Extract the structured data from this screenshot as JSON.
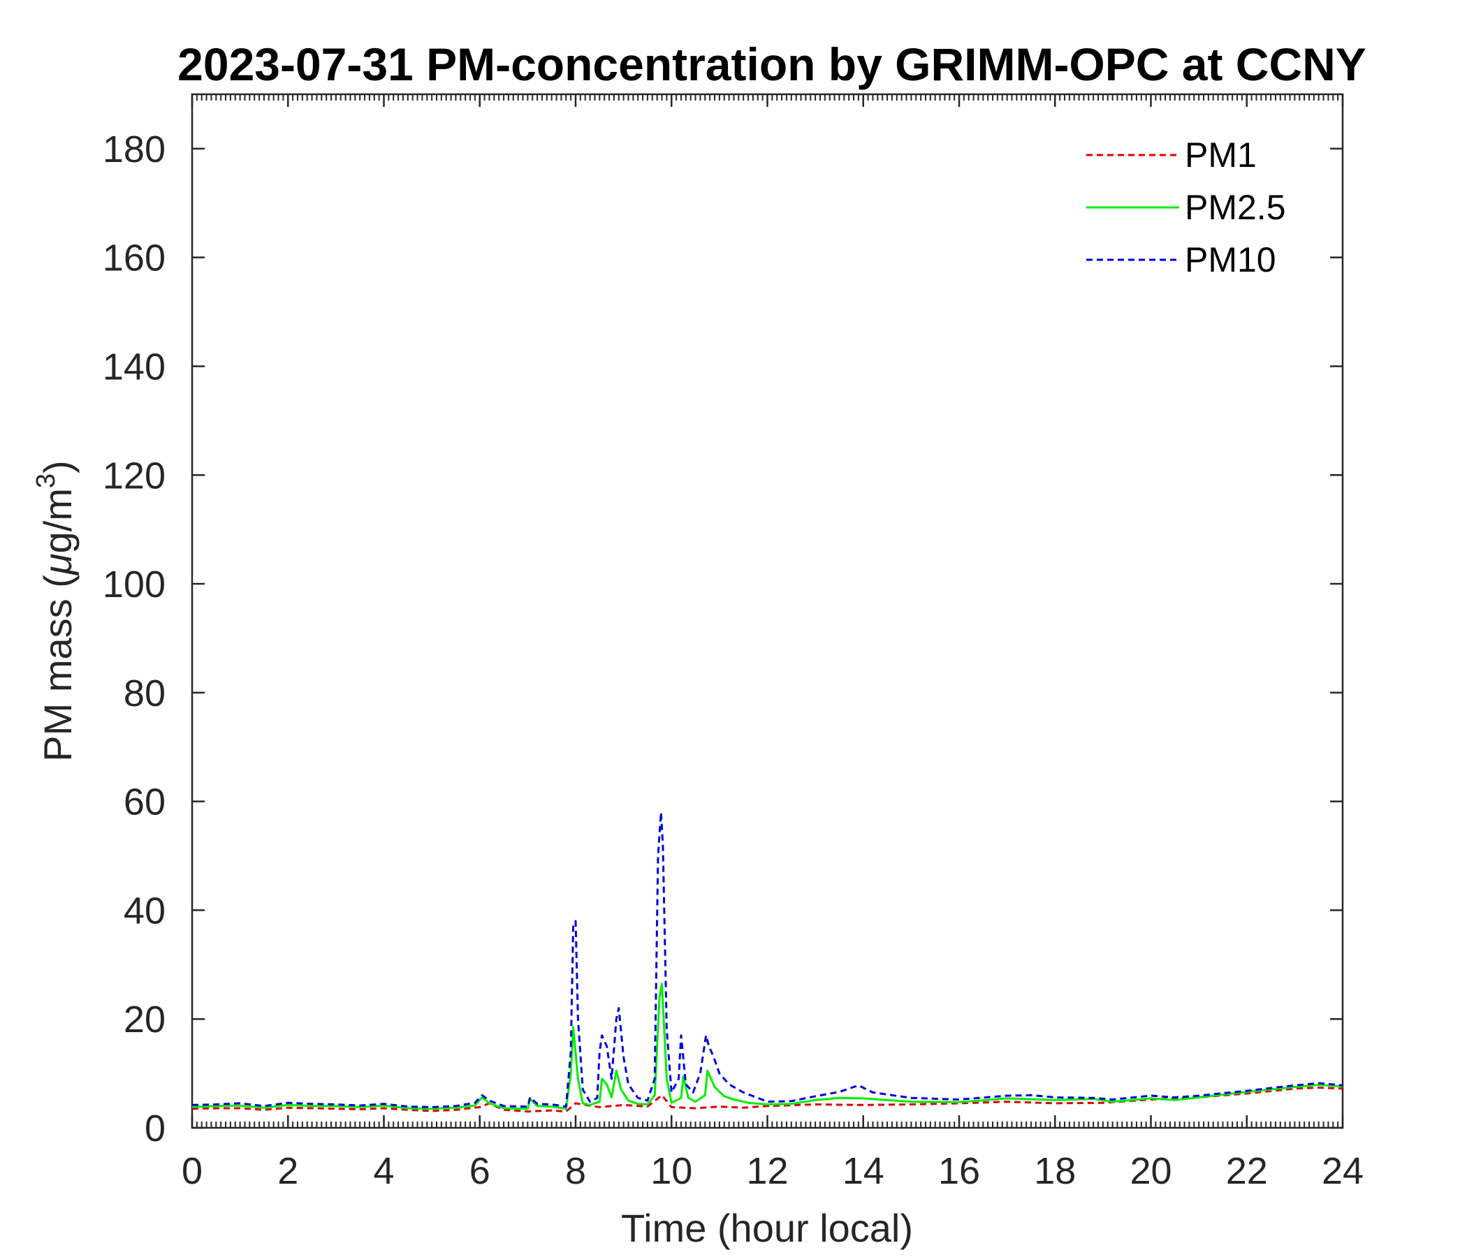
{
  "chart_data": {
    "type": "line",
    "title": "2023-07-31 PM-concentration by GRIMM-OPC at CCNY",
    "xlabel": "Time (hour local)",
    "ylabel_main": "PM mass (",
    "ylabel_mu": "μ",
    "ylabel_unit": "g/m",
    "ylabel_sup": "3",
    "ylabel_close": ")",
    "xlim": [
      0,
      24
    ],
    "ylim": [
      0,
      190
    ],
    "xticks": [
      0,
      2,
      4,
      6,
      8,
      10,
      12,
      14,
      16,
      18,
      20,
      22,
      24
    ],
    "yticks": [
      0,
      20,
      40,
      60,
      80,
      100,
      120,
      140,
      160,
      180
    ],
    "grid": false,
    "legend_position": "top-right",
    "series": [
      {
        "name": "PM1",
        "color": "#e00000",
        "dash": "dashed",
        "x": [
          0,
          0.5,
          1,
          1.5,
          2,
          2.5,
          3,
          3.5,
          4,
          4.5,
          5,
          5.5,
          6,
          6.2,
          6.5,
          7,
          7.5,
          7.8,
          8,
          8.5,
          9,
          9.5,
          9.8,
          10,
          10.5,
          11,
          11.5,
          12,
          13,
          14,
          15,
          16,
          17,
          18,
          19,
          20,
          21,
          22,
          23,
          23.5,
          24
        ],
        "values": [
          3.5,
          3.6,
          3.6,
          3.3,
          3.7,
          3.6,
          3.5,
          3.4,
          3.6,
          3.3,
          3.1,
          3.3,
          3.8,
          4.5,
          3.3,
          3.0,
          3.2,
          3.0,
          4.5,
          3.8,
          4.2,
          3.9,
          6.0,
          3.8,
          3.6,
          3.9,
          3.7,
          4.0,
          4.3,
          4.2,
          4.3,
          4.5,
          4.8,
          4.5,
          4.6,
          5.2,
          5.6,
          6.3,
          7.2,
          7.4,
          7.2
        ]
      },
      {
        "name": "PM2.5",
        "color": "#00ee00",
        "dash": "solid",
        "x": [
          0,
          0.5,
          1,
          1.5,
          2,
          2.5,
          3,
          3.5,
          4,
          4.5,
          5,
          5.5,
          5.9,
          6.05,
          6.2,
          6.5,
          7.0,
          7.05,
          7.2,
          7.5,
          7.8,
          7.9,
          7.95,
          8.05,
          8.15,
          8.3,
          8.5,
          8.55,
          8.65,
          8.75,
          8.85,
          8.95,
          9.1,
          9.3,
          9.5,
          9.65,
          9.75,
          9.8,
          9.9,
          10.0,
          10.2,
          10.25,
          10.35,
          10.5,
          10.7,
          10.75,
          10.9,
          11.1,
          11.3,
          11.6,
          12,
          12.5,
          13,
          13.5,
          14,
          14.5,
          15,
          16,
          17,
          18,
          18.8,
          19.2,
          20,
          20.5,
          21,
          22,
          23,
          23.5,
          24
        ],
        "values": [
          3.8,
          4.0,
          4.1,
          3.7,
          4.2,
          4.0,
          4.0,
          3.8,
          4.1,
          3.6,
          3.5,
          3.7,
          4.1,
          5.6,
          4.5,
          3.6,
          3.5,
          5.3,
          4.0,
          3.9,
          3.5,
          10.0,
          18.5,
          9.0,
          4.5,
          4.2,
          4.8,
          9.0,
          8.0,
          5.6,
          10.5,
          7.0,
          5.0,
          4.4,
          4.3,
          6.0,
          24.0,
          26.5,
          9.0,
          4.6,
          5.5,
          9.5,
          5.5,
          4.8,
          6.0,
          10.5,
          7.5,
          5.8,
          5.2,
          4.6,
          4.3,
          4.4,
          5.1,
          5.5,
          5.4,
          5.1,
          4.8,
          4.7,
          5.4,
          5.1,
          5.3,
          4.8,
          5.4,
          5.1,
          5.6,
          6.6,
          7.5,
          7.9,
          7.6
        ]
      },
      {
        "name": "PM10",
        "color": "#0000dd",
        "dash": "dashed",
        "x": [
          0,
          0.5,
          1,
          1.5,
          2,
          2.5,
          3,
          3.5,
          4,
          4.5,
          5,
          5.5,
          5.9,
          6.05,
          6.2,
          6.5,
          7.0,
          7.05,
          7.2,
          7.5,
          7.8,
          7.9,
          7.95,
          8.0,
          8.05,
          8.15,
          8.3,
          8.45,
          8.5,
          8.55,
          8.65,
          8.75,
          8.85,
          8.9,
          9.0,
          9.1,
          9.3,
          9.5,
          9.65,
          9.72,
          9.78,
          9.82,
          9.9,
          10.0,
          10.15,
          10.2,
          10.3,
          10.45,
          10.6,
          10.72,
          10.78,
          10.88,
          11.0,
          11.2,
          11.5,
          11.8,
          12,
          12.5,
          13,
          13.5,
          13.9,
          14.2,
          14.6,
          15,
          16,
          17,
          17.5,
          18,
          18.8,
          19.2,
          20,
          20.5,
          21,
          22,
          23,
          23.5,
          24
        ],
        "values": [
          4.2,
          4.3,
          4.5,
          4.0,
          4.6,
          4.4,
          4.3,
          4.1,
          4.4,
          3.9,
          3.8,
          4.0,
          4.6,
          6.0,
          5.0,
          4.0,
          3.9,
          5.6,
          4.4,
          4.3,
          3.9,
          14.0,
          37.0,
          38.0,
          20.0,
          7.0,
          4.8,
          5.5,
          14.0,
          17.0,
          15.0,
          9.0,
          20.0,
          22.0,
          13.0,
          8.0,
          5.5,
          5.0,
          9.0,
          50.0,
          58.0,
          52.0,
          18.0,
          6.5,
          9.0,
          17.0,
          8.0,
          6.5,
          10.0,
          17.0,
          15.0,
          13.0,
          10.0,
          8.0,
          6.5,
          5.5,
          4.8,
          4.9,
          5.8,
          6.6,
          7.8,
          6.5,
          6.0,
          5.5,
          5.2,
          5.9,
          6.0,
          5.6,
          5.5,
          5.2,
          5.9,
          5.6,
          5.9,
          6.8,
          7.8,
          8.2,
          7.8
        ]
      }
    ]
  }
}
